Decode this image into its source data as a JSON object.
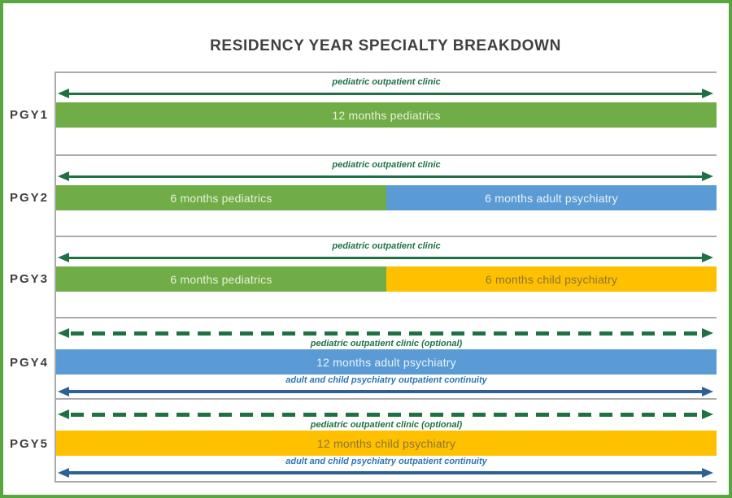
{
  "title": "RESIDENCY YEAR SPECIALTY BREAKDOWN",
  "colors": {
    "frame_green": "#57a63e",
    "grid_gray": "#ababab",
    "bar_pediatrics_green": "#70ad47",
    "bar_adult_psychiatry_blue": "#5b9bd5",
    "bar_child_psychiatry_yellow": "#ffc000",
    "clinic_arrow_dark_green": "#1f7145",
    "continuity_label_blue": "#2e75b6",
    "continuity_arrow_blue": "#2d6096",
    "title_text": "#404040"
  },
  "chart_data": {
    "type": "bar",
    "orientation": "horizontal",
    "title": "RESIDENCY YEAR SPECIALTY BREAKDOWN",
    "categories": [
      "PGY1",
      "PGY2",
      "PGY3",
      "PGY4",
      "PGY5"
    ],
    "x_range_months": [
      0,
      12
    ],
    "grid": "row-separators",
    "legend": "none",
    "rows": [
      {
        "year": "PGY1",
        "top_overlay": {
          "label": "pediatric outpatient clinic",
          "style": "solid-double-arrow",
          "color": "#1f7145",
          "label_position": "above-arrow"
        },
        "segments": [
          {
            "label": "12 months pediatrics",
            "specialty": "pediatrics",
            "months": 12,
            "fraction": 1.0,
            "color": "#70ad47"
          }
        ]
      },
      {
        "year": "PGY2",
        "top_overlay": {
          "label": "pediatric outpatient clinic",
          "style": "solid-double-arrow",
          "color": "#1f7145",
          "label_position": "above-arrow"
        },
        "segments": [
          {
            "label": "6 months pediatrics",
            "specialty": "pediatrics",
            "months": 6,
            "fraction": 0.5,
            "color": "#70ad47"
          },
          {
            "label": "6 months adult psychiatry",
            "specialty": "adult psychiatry",
            "months": 6,
            "fraction": 0.5,
            "color": "#5b9bd5"
          }
        ]
      },
      {
        "year": "PGY3",
        "top_overlay": {
          "label": "pediatric outpatient clinic",
          "style": "solid-double-arrow",
          "color": "#1f7145",
          "label_position": "above-arrow"
        },
        "segments": [
          {
            "label": "6 months pediatrics",
            "specialty": "pediatrics",
            "months": 6,
            "fraction": 0.5,
            "color": "#70ad47"
          },
          {
            "label": "6 months child psychiatry",
            "specialty": "child psychiatry",
            "months": 6,
            "fraction": 0.5,
            "color": "#ffc000"
          }
        ]
      },
      {
        "year": "PGY4",
        "top_overlay": {
          "label": "pediatric outpatient clinic (optional)",
          "style": "dashed-double-arrow",
          "color": "#1f7145",
          "label_position": "below-arrow"
        },
        "segments": [
          {
            "label": "12 months adult psychiatry",
            "specialty": "adult psychiatry",
            "months": 12,
            "fraction": 1.0,
            "color": "#5b9bd5"
          }
        ],
        "bottom_overlay": {
          "label": "adult and child psychiatry outpatient continuity",
          "style": "solid-double-arrow",
          "color": "#2d6096",
          "label_position": "above-arrow"
        }
      },
      {
        "year": "PGY5",
        "top_overlay": {
          "label": "pediatric outpatient clinic (optional)",
          "style": "dashed-double-arrow",
          "color": "#1f7145",
          "label_position": "below-arrow"
        },
        "segments": [
          {
            "label": "12 months child psychiatry",
            "specialty": "child psychiatry",
            "months": 12,
            "fraction": 1.0,
            "color": "#ffc000"
          }
        ],
        "bottom_overlay": {
          "label": "adult and child psychiatry outpatient continuity",
          "style": "solid-double-arrow",
          "color": "#2d6096",
          "label_position": "above-arrow"
        }
      }
    ]
  }
}
